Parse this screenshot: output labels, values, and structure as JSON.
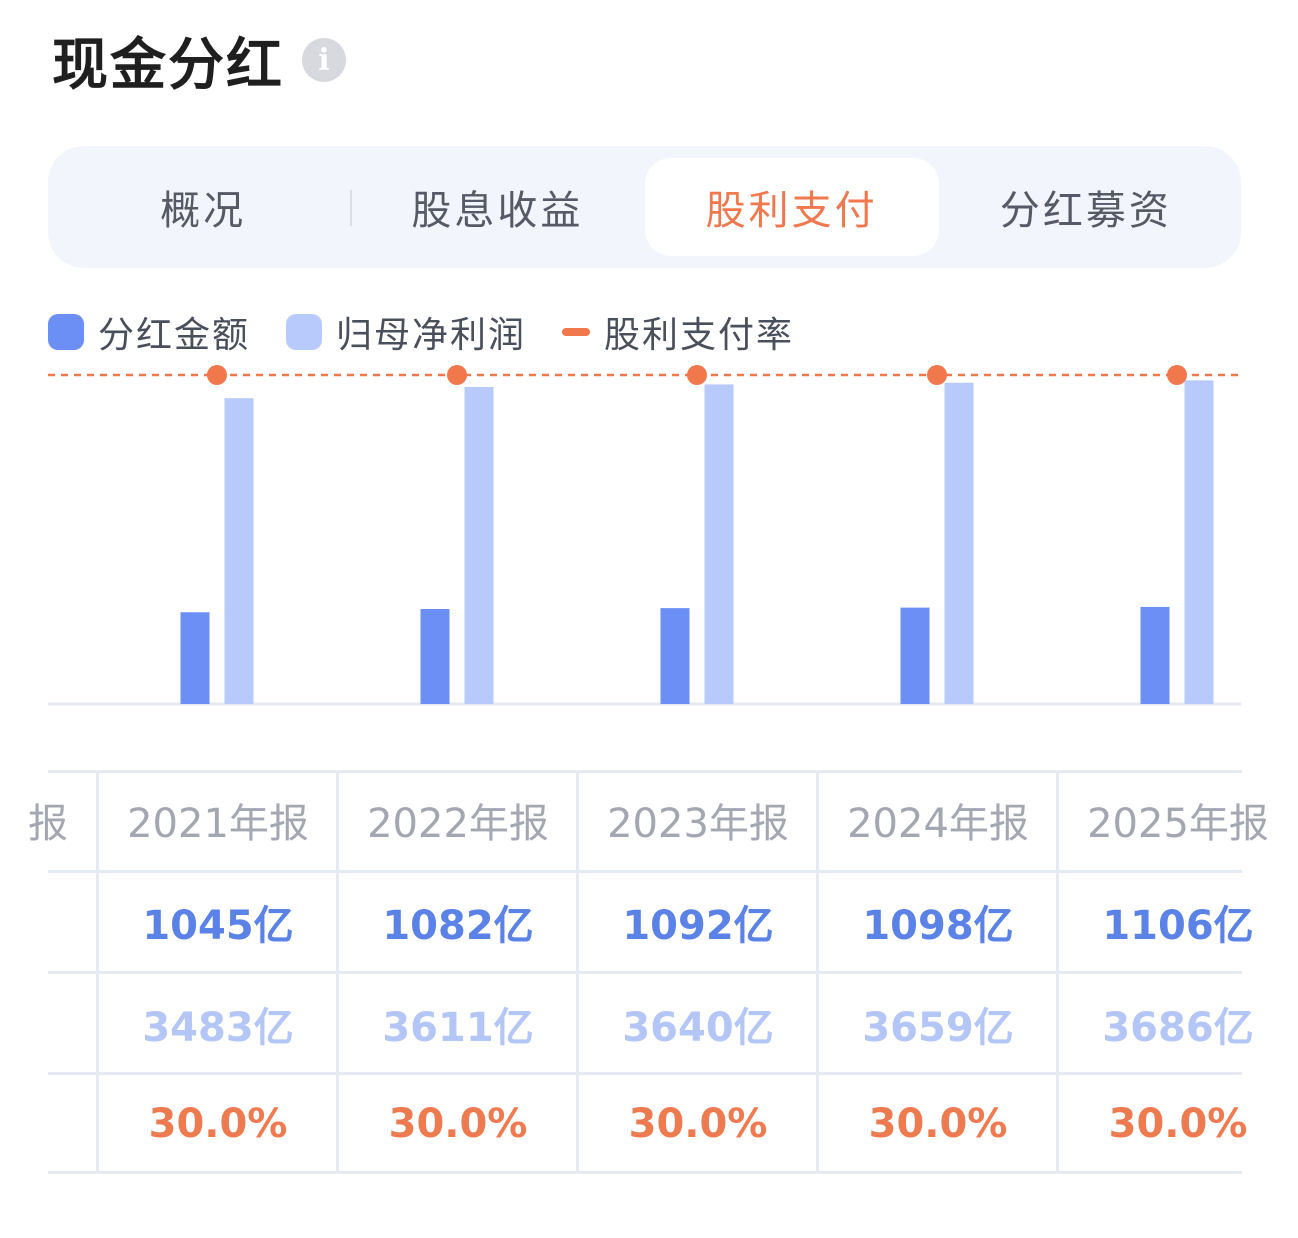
{
  "header": {
    "title": "现金分红",
    "info_icon": "info-icon"
  },
  "tabs": [
    {
      "label": "概况",
      "active": false
    },
    {
      "label": "股息收益",
      "active": false
    },
    {
      "label": "股利支付",
      "active": true
    },
    {
      "label": "分红募资",
      "active": false
    }
  ],
  "legend": [
    {
      "label": "分红金额",
      "color": "#6b8ff5",
      "shape": "square"
    },
    {
      "label": "归母净利润",
      "color": "#b8c9fb",
      "shape": "square"
    },
    {
      "label": "股利支付率",
      "color": "#f0784c",
      "shape": "line"
    }
  ],
  "chart_data": {
    "type": "bar",
    "categories": [
      "2021年报",
      "2022年报",
      "2023年报",
      "2024年报",
      "2025年报"
    ],
    "series": [
      {
        "name": "分红金额",
        "values": [
          1045,
          1082,
          1092,
          1098,
          1106
        ],
        "color": "#6b8ff5"
      },
      {
        "name": "归母净利润",
        "values": [
          3483,
          3611,
          3640,
          3659,
          3686
        ],
        "color": "#b8c9fb"
      },
      {
        "name": "股利支付率",
        "values": [
          30.0,
          30.0,
          30.0,
          30.0,
          30.0
        ],
        "color": "#f0784c",
        "render": "dashed-line"
      }
    ],
    "grid": false
  },
  "table": {
    "first_column_fragment": "报",
    "columns": [
      "2021年报",
      "2022年报",
      "2023年报",
      "2024年报",
      "2025年报"
    ],
    "rows": [
      {
        "values": [
          "1045亿",
          "1082亿",
          "1092亿",
          "1098亿",
          "1106亿"
        ]
      },
      {
        "values": [
          "3483亿",
          "3611亿",
          "3640亿",
          "3659亿",
          "3686亿"
        ]
      },
      {
        "values": [
          "30.0%",
          "30.0%",
          "30.0%",
          "30.0%",
          "30.0%"
        ]
      }
    ]
  }
}
